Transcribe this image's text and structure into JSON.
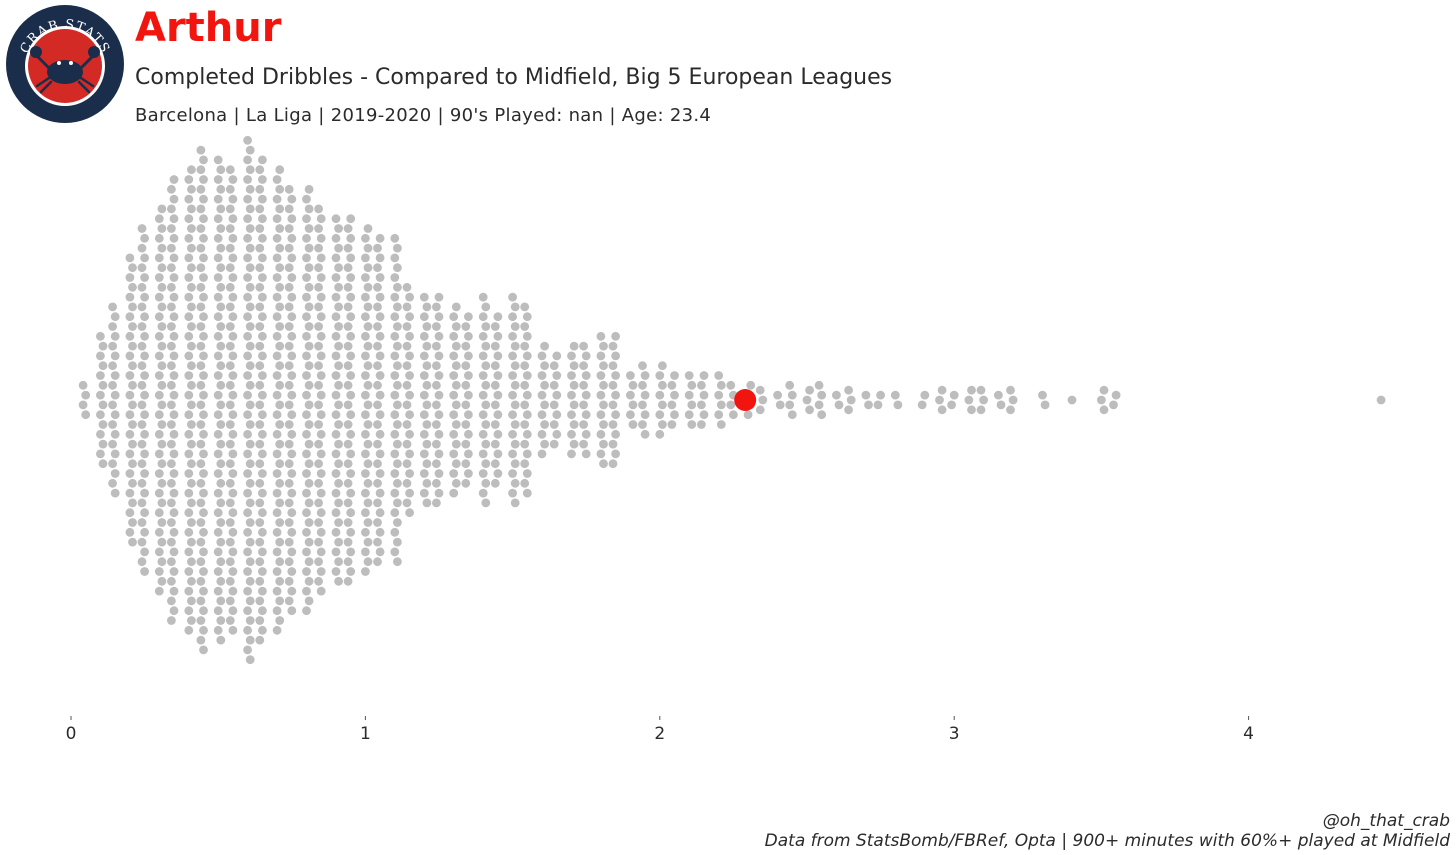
{
  "header": {
    "logo_text": "CRAB STATS",
    "player": "Arthur",
    "subtitle": "Completed Dribbles - Compared to Midfield, Big 5 European Leagues",
    "meta": "Barcelona  | La Liga | 2019-2020 | 90's Played: nan | Age: 23.4"
  },
  "colors": {
    "highlight": "#f2150f",
    "points": "#bdbdbd",
    "logo_ring": "#1a2d4a",
    "logo_inner": "#d42a26"
  },
  "chart_data": {
    "type": "scatter",
    "subtype": "beeswarm",
    "xlim": [
      0,
      4.5
    ],
    "x_ticks": [
      "0",
      "1",
      "2",
      "3",
      "4"
    ],
    "highlight": {
      "name": "Arthur",
      "x": 2.29
    },
    "distribution_bins": [
      {
        "x": 0.05,
        "count": 4
      },
      {
        "x": 0.1,
        "count": 14
      },
      {
        "x": 0.15,
        "count": 20
      },
      {
        "x": 0.2,
        "count": 30
      },
      {
        "x": 0.25,
        "count": 36
      },
      {
        "x": 0.3,
        "count": 40
      },
      {
        "x": 0.35,
        "count": 46
      },
      {
        "x": 0.4,
        "count": 48
      },
      {
        "x": 0.45,
        "count": 52
      },
      {
        "x": 0.5,
        "count": 50
      },
      {
        "x": 0.55,
        "count": 48
      },
      {
        "x": 0.6,
        "count": 54
      },
      {
        "x": 0.65,
        "count": 50
      },
      {
        "x": 0.7,
        "count": 48
      },
      {
        "x": 0.75,
        "count": 44
      },
      {
        "x": 0.8,
        "count": 44
      },
      {
        "x": 0.85,
        "count": 40
      },
      {
        "x": 0.9,
        "count": 38
      },
      {
        "x": 0.95,
        "count": 38
      },
      {
        "x": 1.0,
        "count": 36
      },
      {
        "x": 1.05,
        "count": 34
      },
      {
        "x": 1.1,
        "count": 34
      },
      {
        "x": 1.15,
        "count": 24
      },
      {
        "x": 1.2,
        "count": 22
      },
      {
        "x": 1.25,
        "count": 22
      },
      {
        "x": 1.3,
        "count": 20
      },
      {
        "x": 1.35,
        "count": 18
      },
      {
        "x": 1.4,
        "count": 22
      },
      {
        "x": 1.45,
        "count": 18
      },
      {
        "x": 1.5,
        "count": 22
      },
      {
        "x": 1.55,
        "count": 20
      },
      {
        "x": 1.6,
        "count": 12
      },
      {
        "x": 1.65,
        "count": 10
      },
      {
        "x": 1.7,
        "count": 12
      },
      {
        "x": 1.75,
        "count": 12
      },
      {
        "x": 1.8,
        "count": 14
      },
      {
        "x": 1.85,
        "count": 14
      },
      {
        "x": 1.9,
        "count": 6
      },
      {
        "x": 1.95,
        "count": 8
      },
      {
        "x": 2.0,
        "count": 8
      },
      {
        "x": 2.05,
        "count": 6
      },
      {
        "x": 2.1,
        "count": 6
      },
      {
        "x": 2.15,
        "count": 6
      },
      {
        "x": 2.2,
        "count": 6
      },
      {
        "x": 2.25,
        "count": 4
      },
      {
        "x": 2.3,
        "count": 4
      },
      {
        "x": 2.35,
        "count": 3
      },
      {
        "x": 2.4,
        "count": 2
      },
      {
        "x": 2.45,
        "count": 4
      },
      {
        "x": 2.5,
        "count": 3
      },
      {
        "x": 2.55,
        "count": 4
      },
      {
        "x": 2.6,
        "count": 2
      },
      {
        "x": 2.65,
        "count": 3
      },
      {
        "x": 2.7,
        "count": 2
      },
      {
        "x": 2.75,
        "count": 2
      },
      {
        "x": 2.8,
        "count": 2
      },
      {
        "x": 2.9,
        "count": 2
      },
      {
        "x": 2.95,
        "count": 3
      },
      {
        "x": 3.0,
        "count": 2
      },
      {
        "x": 3.05,
        "count": 3
      },
      {
        "x": 3.1,
        "count": 3
      },
      {
        "x": 3.15,
        "count": 2
      },
      {
        "x": 3.2,
        "count": 3
      },
      {
        "x": 3.3,
        "count": 2
      },
      {
        "x": 3.4,
        "count": 1
      },
      {
        "x": 3.5,
        "count": 3
      },
      {
        "x": 3.55,
        "count": 2
      },
      {
        "x": 4.45,
        "count": 1
      }
    ]
  },
  "footer": {
    "handle": "@oh_that_crab",
    "source": "Data from StatsBomb/FBRef, Opta | 900+ minutes with 60%+ played at Midfield"
  }
}
